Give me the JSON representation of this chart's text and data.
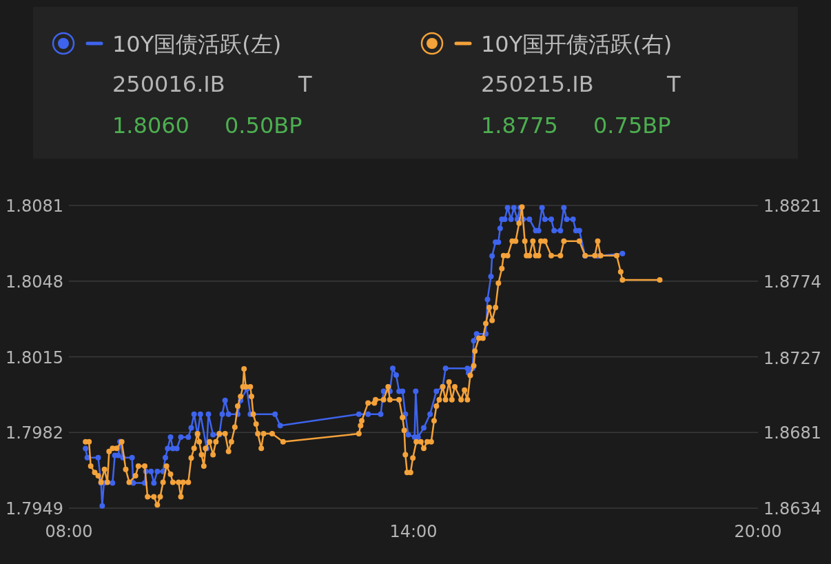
{
  "chart_data": {
    "type": "line",
    "x": [
      8.29,
      8.32,
      8.51,
      8.56,
      8.58,
      8.61,
      8.76,
      8.8,
      8.86,
      8.89,
      8.94,
      9.1,
      9.12,
      9.32,
      9.34,
      9.43,
      9.48,
      9.54,
      9.64,
      9.68,
      9.72,
      9.77,
      9.81,
      9.88,
      9.95,
      10.08,
      10.13,
      10.18,
      10.24,
      10.29,
      10.4,
      10.43,
      10.51,
      10.62,
      10.67,
      10.72,
      10.78,
      10.94,
      10.99,
      11.1,
      11.16,
      11.59,
      11.68,
      13.05,
      13.21,
      13.43,
      13.48,
      13.59,
      13.64,
      13.7,
      13.75,
      13.81,
      13.86,
      13.91,
      14.02,
      14.04,
      14.08,
      14.18,
      14.29,
      14.4,
      14.51,
      14.56,
      14.94,
      14.96,
      15.03,
      15.05,
      15.1,
      15.26,
      15.29,
      15.35,
      15.37,
      15.43,
      15.48,
      15.51,
      15.54,
      15.59,
      15.64,
      15.7,
      15.75,
      15.81,
      15.86,
      15.91,
      16.02,
      16.13,
      16.18,
      16.24,
      16.29,
      16.4,
      16.45,
      16.56,
      16.62,
      16.67,
      16.78,
      16.83,
      16.89,
      16.99,
      17.21,
      17.64
    ],
    "series": [
      {
        "name": "10Y国债活跃(左)",
        "color": "#3e64ee",
        "values": [
          1.7975,
          1.7971,
          1.7971,
          1.796,
          1.795,
          1.796,
          1.796,
          1.7972,
          1.7972,
          1.7978,
          1.7971,
          1.7971,
          1.796,
          1.796,
          1.7965,
          1.7965,
          1.796,
          1.7965,
          1.7965,
          1.7971,
          1.7975,
          1.798,
          1.7975,
          1.7975,
          1.798,
          1.798,
          1.7984,
          1.799,
          1.7981,
          1.799,
          1.7975,
          1.799,
          1.7981,
          1.7981,
          1.799,
          1.7996,
          1.799,
          1.799,
          1.7996,
          1.8001,
          1.799,
          1.799,
          1.7985,
          1.799,
          1.799,
          1.799,
          1.8,
          1.8,
          1.801,
          1.8007,
          1.8,
          1.8,
          1.799,
          1.7981,
          1.798,
          1.8,
          1.798,
          1.7984,
          1.799,
          1.8,
          1.8002,
          1.801,
          1.801,
          1.8008,
          1.801,
          1.8022,
          1.8025,
          1.8025,
          1.804,
          1.805,
          1.8059,
          1.8065,
          1.8065,
          1.8071,
          1.8075,
          1.8075,
          1.808,
          1.8075,
          1.808,
          1.8075,
          1.808,
          1.8075,
          1.8075,
          1.807,
          1.807,
          1.808,
          1.8075,
          1.8075,
          1.807,
          1.807,
          1.808,
          1.8075,
          1.8075,
          1.807,
          1.807,
          1.8059,
          1.8059,
          1.806
        ]
      },
      {
        "name": "10Y国开债活跃(右)",
        "color": "#f4a23a",
        "axis": "y2",
        "x": [
          8.29,
          8.35,
          8.38,
          8.45,
          8.51,
          8.56,
          8.62,
          8.67,
          8.7,
          8.76,
          8.83,
          8.92,
          8.99,
          9.05,
          9.16,
          9.21,
          9.32,
          9.37,
          9.48,
          9.54,
          9.59,
          9.64,
          9.7,
          9.77,
          9.81,
          9.91,
          9.95,
          9.99,
          10.08,
          10.13,
          10.18,
          10.24,
          10.27,
          10.31,
          10.35,
          10.38,
          10.45,
          10.51,
          10.56,
          10.62,
          10.72,
          10.78,
          10.83,
          10.89,
          10.94,
          10.99,
          11.03,
          11.05,
          11.08,
          11.16,
          11.18,
          11.21,
          11.26,
          11.29,
          11.35,
          11.39,
          11.54,
          11.73,
          13.05,
          13.08,
          13.1,
          13.21,
          13.32,
          13.34,
          13.48,
          13.56,
          13.59,
          13.75,
          13.81,
          13.84,
          13.86,
          13.89,
          13.95,
          13.99,
          14.05,
          14.13,
          14.18,
          14.24,
          14.31,
          14.36,
          14.4,
          14.45,
          14.51,
          14.56,
          14.62,
          14.67,
          14.72,
          14.83,
          14.89,
          14.94,
          14.99,
          15.05,
          15.07,
          15.14,
          15.21,
          15.26,
          15.32,
          15.37,
          15.43,
          15.48,
          15.54,
          15.57,
          15.64,
          15.72,
          15.78,
          15.84,
          15.89,
          15.94,
          15.97,
          16.02,
          16.08,
          16.13,
          16.18,
          16.22,
          16.29,
          16.4,
          16.56,
          16.62,
          16.89,
          16.99,
          17.16,
          17.21,
          17.26,
          17.54,
          17.61,
          17.64,
          18.29
        ],
        "values": [
          1.8675,
          1.8675,
          1.866,
          1.8656,
          1.8654,
          1.865,
          1.8658,
          1.865,
          1.8669,
          1.8671,
          1.8671,
          1.8675,
          1.8658,
          1.865,
          1.8654,
          1.866,
          1.866,
          1.8641,
          1.8641,
          1.8636,
          1.8641,
          1.865,
          1.866,
          1.8655,
          1.865,
          1.865,
          1.8641,
          1.865,
          1.865,
          1.8665,
          1.8671,
          1.868,
          1.8675,
          1.8667,
          1.866,
          1.8671,
          1.8675,
          1.8667,
          1.8675,
          1.868,
          1.868,
          1.8669,
          1.8675,
          1.8684,
          1.8697,
          1.8703,
          1.8709,
          1.872,
          1.8709,
          1.8709,
          1.8703,
          1.8692,
          1.8686,
          1.868,
          1.8671,
          1.868,
          1.868,
          1.8675,
          1.868,
          1.8685,
          1.8688,
          1.8699,
          1.8699,
          1.8701,
          1.8701,
          1.8709,
          1.8701,
          1.8701,
          1.869,
          1.8682,
          1.8667,
          1.8656,
          1.8656,
          1.8665,
          1.8675,
          1.8675,
          1.8671,
          1.8675,
          1.8675,
          1.8688,
          1.8697,
          1.8701,
          1.8709,
          1.8701,
          1.8712,
          1.8701,
          1.8709,
          1.8701,
          1.8707,
          1.8701,
          1.8716,
          1.8722,
          1.8731,
          1.8739,
          1.8739,
          1.8748,
          1.8758,
          1.875,
          1.8758,
          1.8773,
          1.8782,
          1.879,
          1.879,
          1.8799,
          1.8799,
          1.881,
          1.882,
          1.8799,
          1.879,
          1.879,
          1.8799,
          1.879,
          1.879,
          1.8799,
          1.8799,
          1.879,
          1.879,
          1.8799,
          1.8799,
          1.879,
          1.879,
          1.8799,
          1.879,
          1.879,
          1.878,
          1.8775,
          1.8775
        ]
      }
    ],
    "xlim": [
      8,
      20
    ],
    "xticks": [
      {
        "value": 8,
        "label": "08:00"
      },
      {
        "value": 14,
        "label": "14:00"
      },
      {
        "value": 20,
        "label": "20:00"
      }
    ],
    "ylim": [
      1.7949,
      1.8081
    ],
    "yticks": [
      1.7949,
      1.7982,
      1.8015,
      1.8048,
      1.8081
    ],
    "y2lim": [
      1.8634,
      1.8821
    ],
    "y2ticks": [
      1.8634,
      1.8681,
      1.8727,
      1.8774,
      1.8821
    ],
    "grid": "y",
    "legend": "top",
    "marker": "circle",
    "line_style": "solid",
    "annotations": [
      "250016.IB",
      "T",
      "1.8060",
      "0.50BP",
      "250215.IB",
      "T",
      "1.8775",
      "0.75BP"
    ]
  }
}
